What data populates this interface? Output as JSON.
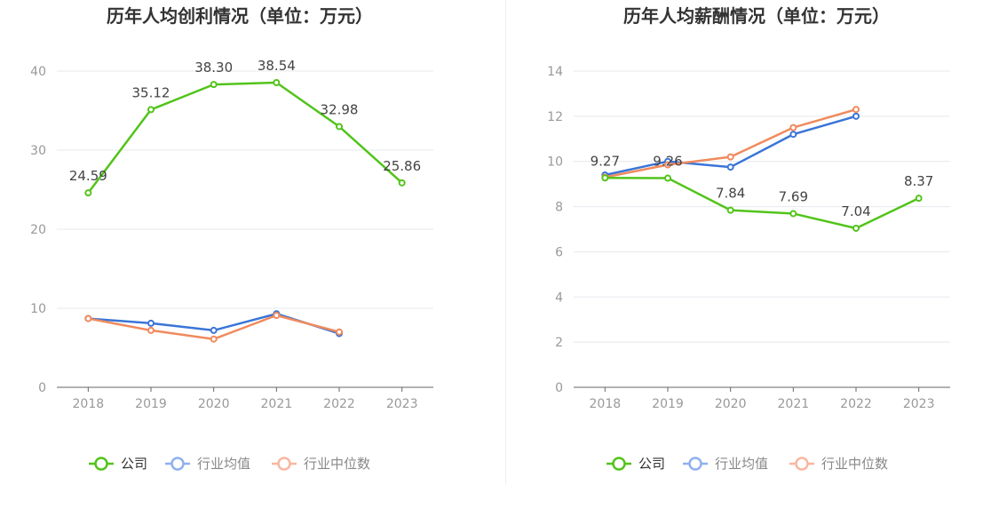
{
  "colors": {
    "company": "#52c41a",
    "industry_avg": "#3a75d8",
    "industry_median": "#f08a5d",
    "grid": "#e6e8ee",
    "axis": "#666666",
    "tick_text": "#999999",
    "title_text": "#333333",
    "label_text": "#444444",
    "legend_avg_icon": "#8fb0ef",
    "legend_median_icon": "#f9b79f"
  },
  "legend": [
    {
      "key": "company",
      "label": "公司"
    },
    {
      "key": "industry_avg",
      "label": "行业均值"
    },
    {
      "key": "industry_median",
      "label": "行业中位数"
    }
  ],
  "chart_data": [
    {
      "type": "line",
      "title": "历年人均创利情况（单位：万元）",
      "x": [
        "2018",
        "2019",
        "2020",
        "2021",
        "2022",
        "2023"
      ],
      "ylim": [
        0,
        40
      ],
      "yticks": [
        0,
        10,
        20,
        30,
        40
      ],
      "grid": true,
      "legend_position": "bottom",
      "series": [
        {
          "key": "company",
          "name": "公司",
          "values": [
            24.59,
            35.12,
            38.3,
            38.54,
            32.98,
            25.86
          ],
          "labels": [
            "24.59",
            "35.12",
            "38.30",
            "38.54",
            "32.98",
            "25.86"
          ]
        },
        {
          "key": "industry_avg",
          "name": "行业均值",
          "values": [
            8.7,
            8.1,
            7.2,
            9.3,
            6.8,
            null
          ]
        },
        {
          "key": "industry_median",
          "name": "行业中位数",
          "values": [
            8.7,
            7.2,
            6.1,
            9.1,
            7.0,
            null
          ]
        }
      ]
    },
    {
      "type": "line",
      "title": "历年人均薪酬情况（单位：万元）",
      "x": [
        "2018",
        "2019",
        "2020",
        "2021",
        "2022",
        "2023"
      ],
      "ylim": [
        0,
        14
      ],
      "yticks": [
        0,
        2,
        4,
        6,
        8,
        10,
        12,
        14
      ],
      "grid": true,
      "legend_position": "bottom",
      "series": [
        {
          "key": "company",
          "name": "公司",
          "values": [
            9.27,
            9.26,
            7.84,
            7.69,
            7.04,
            8.37
          ],
          "labels": [
            "9.27",
            "9.26",
            "7.84",
            "7.69",
            "7.04",
            "8.37"
          ]
        },
        {
          "key": "industry_avg",
          "name": "行业均值",
          "values": [
            9.4,
            10.0,
            9.75,
            11.2,
            12.0,
            null
          ]
        },
        {
          "key": "industry_median",
          "name": "行业中位数",
          "values": [
            9.3,
            9.85,
            10.2,
            11.5,
            12.3,
            null
          ]
        }
      ]
    }
  ]
}
